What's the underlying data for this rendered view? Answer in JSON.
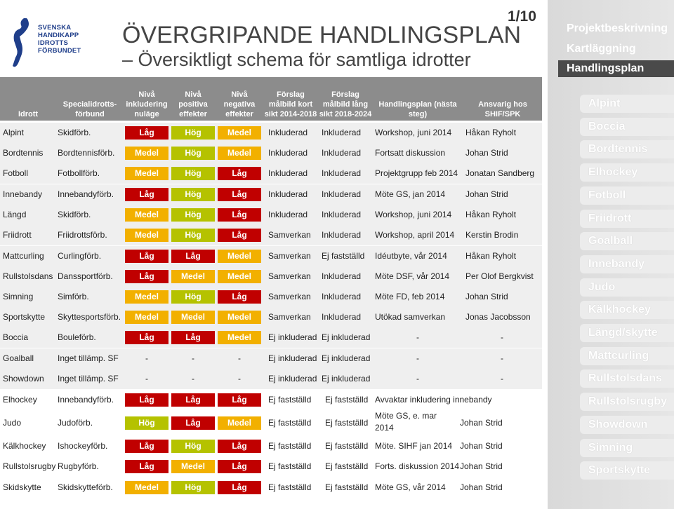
{
  "page_number": "1/10",
  "title": "ÖVERGRIPANDE HANDLINGSPLAN",
  "subtitle": "– Översiktligt schema för samtliga idrotter",
  "logo_text": [
    "SVENSKA",
    "HANDIKAPP",
    "IDROTTS",
    "FÖRBUNDET"
  ],
  "colors": {
    "lag": "#c00000",
    "hog": "#b5c200",
    "medel": "#f2b000",
    "header": "#8c8c8c"
  },
  "header": {
    "idrott": "Idrott",
    "forbund": "Specialidrotts-förbund",
    "niva_nulage": "Nivå inkludering nuläge",
    "niva_positiva": "Nivå positiva effekter",
    "niva_negativa": "Nivå negativa effekter",
    "kort_sikt": "Förslag målbild kort sikt 2014-2018",
    "lang_sikt": "Förslag målbild lång sikt 2018-2024",
    "handlingsplan": "Handlingsplan (nästa steg)",
    "ansvarig": "Ansvarig hos SHIF/SPK"
  },
  "sidebar": {
    "top": [
      "Projektbeskrivning",
      "Kartläggning",
      "Handlingsplan"
    ],
    "items": [
      "Alpint",
      "Boccia",
      "Bordtennis",
      "Elhockey",
      "Fotboll",
      "Friidrott",
      "Goalball",
      "Innebandy",
      "Judo",
      "Kälkhockey",
      "Längd/skytte",
      "Mattcurling",
      "Rullstolsdans",
      "Rullstolsrugby",
      "Showdown",
      "Simning",
      "Sportskytte"
    ]
  },
  "rows": [
    {
      "idrott": "Alpint",
      "forbund": "Skidförb.",
      "n1": "Låg",
      "n2": "Hög",
      "n3": "Medel",
      "kort": "Inkluderad",
      "lang": "Inkluderad",
      "plan": "Workshop, juni 2014",
      "ansvarig": "Håkan Ryholt"
    },
    {
      "idrott": "Bordtennis",
      "forbund": "Bordtennisförb.",
      "n1": "Medel",
      "n2": "Hög",
      "n3": "Medel",
      "kort": "Inkluderad",
      "lang": "Inkluderad",
      "plan": "Fortsatt diskussion",
      "ansvarig": "Johan Strid"
    },
    {
      "idrott": "Fotboll",
      "forbund": "Fotbollförb.",
      "n1": "Medel",
      "n2": "Hög",
      "n3": "Låg",
      "kort": "Inkluderad",
      "lang": "Inkluderad",
      "plan": "Projektgrupp feb 2014",
      "ansvarig": "Jonatan Sandberg"
    },
    {
      "idrott": "Innebandy",
      "forbund": "Innebandyförb.",
      "n1": "Låg",
      "n2": "Hög",
      "n3": "Låg",
      "kort": "Inkluderad",
      "lang": "Inkluderad",
      "plan": "Möte GS, jan 2014",
      "ansvarig": "Johan Strid"
    },
    {
      "idrott": "Längd",
      "forbund": "Skidförb.",
      "n1": "Medel",
      "n2": "Hög",
      "n3": "Låg",
      "kort": "Inkluderad",
      "lang": "Inkluderad",
      "plan": "Workshop, juni 2014",
      "ansvarig": "Håkan Ryholt"
    },
    {
      "idrott": "Friidrott",
      "forbund": "Friidrottsförb.",
      "n1": "Medel",
      "n2": "Hög",
      "n3": "Låg",
      "kort": "Samverkan",
      "lang": "Inkluderad",
      "plan": "Workshop, april 2014",
      "ansvarig": "Kerstin Brodin"
    },
    {
      "idrott": "Mattcurling",
      "forbund": "Curlingförb.",
      "n1": "Låg",
      "n2": "Låg",
      "n3": "Medel",
      "kort": "Samverkan",
      "lang": "Ej fastställd",
      "plan": "Idéutbyte, vår 2014",
      "ansvarig": "Håkan Ryholt"
    },
    {
      "idrott": "Rullstolsdans",
      "forbund": "Danssportförb.",
      "n1": "Låg",
      "n2": "Medel",
      "n3": "Medel",
      "kort": "Samverkan",
      "lang": "Inkluderad",
      "plan": "Möte DSF, vår 2014",
      "ansvarig": "Per Olof Bergkvist"
    },
    {
      "idrott": "Simning",
      "forbund": "Simförb.",
      "n1": "Medel",
      "n2": "Hög",
      "n3": "Låg",
      "kort": "Samverkan",
      "lang": "Inkluderad",
      "plan": "Möte FD, feb 2014",
      "ansvarig": "Johan Strid"
    },
    {
      "idrott": "Sportskytte",
      "forbund": "Skyttesportsförb.",
      "n1": "Medel",
      "n2": "Medel",
      "n3": "Medel",
      "kort": "Samverkan",
      "lang": "Inkluderad",
      "plan": "Utökad samverkan",
      "ansvarig": "Jonas Jacobsson"
    },
    {
      "idrott": "Boccia",
      "forbund": "Bouleförb.",
      "n1": "Låg",
      "n2": "Låg",
      "n3": "Medel",
      "kort": "Ej inkluderad",
      "lang": "Ej inkluderad",
      "plan": "-",
      "ansvarig": "-"
    },
    {
      "idrott": "Goalball",
      "forbund": "Inget tillämp. SF",
      "n1": "-",
      "n2": "-",
      "n3": "-",
      "kort": "Ej inkluderad",
      "lang": "Ej inkluderad",
      "plan": "-",
      "ansvarig": "-"
    },
    {
      "idrott": "Showdown",
      "forbund": "Inget tillämp. SF",
      "n1": "-",
      "n2": "-",
      "n3": "-",
      "kort": "Ej inkluderad",
      "lang": "Ej inkluderad",
      "plan": "-",
      "ansvarig": "-"
    },
    {
      "idrott": "Elhockey",
      "forbund": "Innebandyförb.",
      "n1": "Låg",
      "n2": "Låg",
      "n3": "Låg",
      "kort": "Ej fastställd",
      "lang": "Ej fastställd",
      "plan": "Avvaktar  inkludering innebandy",
      "ansvarig": ""
    },
    {
      "idrott": "Judo",
      "forbund": "Judoförb.",
      "n1": "Hög",
      "n2": "Låg",
      "n3": "Medel",
      "kort": "Ej fastställd",
      "lang": "Ej fastställd",
      "plan": "Möte GS, e. mar 2014",
      "ansvarig": "Johan Strid"
    },
    {
      "idrott": "Kälkhockey",
      "forbund": "Ishockeyförb.",
      "n1": "Låg",
      "n2": "Hög",
      "n3": "Låg",
      "kort": "Ej fastställd",
      "lang": "Ej fastställd",
      "plan": "Möte. SIHF jan 2014",
      "ansvarig": "Johan Strid"
    },
    {
      "idrott": "Rullstolsrugby",
      "forbund": "Rugbyförb.",
      "n1": "Låg",
      "n2": "Medel",
      "n3": "Låg",
      "kort": "Ej fastställd",
      "lang": "Ej fastställd",
      "plan": "Forts. diskussion 2014",
      "ansvarig": "Johan Strid"
    },
    {
      "idrott": "Skidskytte",
      "forbund": "Skidskytteförb.",
      "n1": "Medel",
      "n2": "Hög",
      "n3": "Låg",
      "kort": "Ej fastställd",
      "lang": "Ej fastställd",
      "plan": "Möte GS, vår 2014",
      "ansvarig": "Johan Strid"
    }
  ]
}
